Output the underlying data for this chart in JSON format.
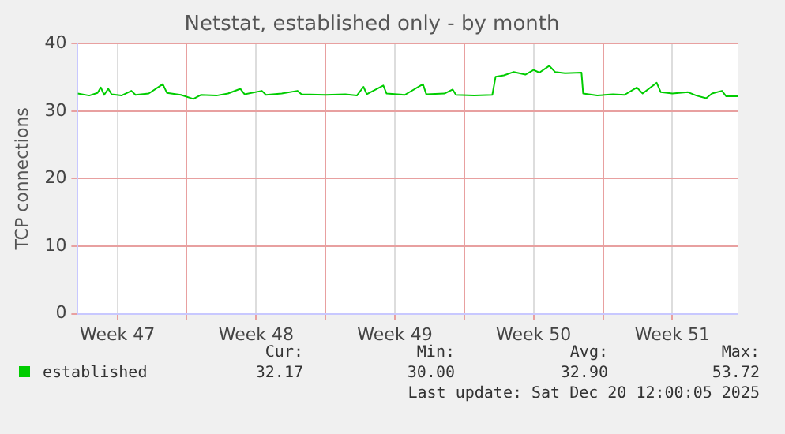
{
  "chart_data": {
    "type": "line",
    "title": "Netstat, established only - by month",
    "ylabel": "TCP connections",
    "x": [
      "2025-11-18T12:00",
      "2025-11-19T02:00",
      "2025-11-19T12:00",
      "2025-11-19T16:00",
      "2025-11-19T20:00",
      "2025-11-20T01:00",
      "2025-11-20T05:00",
      "2025-11-20T17:00",
      "2025-11-21T05:00",
      "2025-11-21T10:00",
      "2025-11-22T02:00",
      "2025-11-22T19:00",
      "2025-11-23T00:00",
      "2025-11-23T17:00",
      "2025-11-24T08:00",
      "2025-11-24T17:00",
      "2025-11-25T12:00",
      "2025-11-26T02:00",
      "2025-11-26T17:00",
      "2025-11-26T22:00",
      "2025-11-27T19:00",
      "2025-11-28T00:00",
      "2025-11-28T19:00",
      "2025-11-29T14:00",
      "2025-11-29T19:00",
      "2025-12-01T00:00",
      "2025-12-02T00:00",
      "2025-12-02T14:00",
      "2025-12-02T22:00",
      "2025-12-03T02:00",
      "2025-12-03T22:00",
      "2025-12-04T02:00",
      "2025-12-05T00:00",
      "2025-12-05T22:00",
      "2025-12-06T02:00",
      "2025-12-07T00:00",
      "2025-12-07T10:00",
      "2025-12-07T14:00",
      "2025-12-08T12:00",
      "2025-12-09T10:00",
      "2025-12-09T14:00",
      "2025-12-10T00:00",
      "2025-12-10T12:00",
      "2025-12-11T02:00",
      "2025-12-11T12:00",
      "2025-12-11T19:00",
      "2025-12-12T07:00",
      "2025-12-12T14:00",
      "2025-12-13T02:00",
      "2025-12-13T22:00",
      "2025-12-14T00:00",
      "2025-12-14T17:00",
      "2025-12-15T12:00",
      "2025-12-16T02:00",
      "2025-12-16T17:00",
      "2025-12-17T00:00",
      "2025-12-17T17:00",
      "2025-12-17T22:00",
      "2025-12-18T12:00",
      "2025-12-19T07:00",
      "2025-12-19T17:00",
      "2025-12-20T05:00",
      "2025-12-20T12:00",
      "2025-12-21T00:00",
      "2025-12-21T05:00",
      "2025-12-21T19:00"
    ],
    "series": [
      {
        "name": "established",
        "color": "#00cc00",
        "values": [
          32.6,
          32.3,
          32.7,
          33.5,
          32.4,
          33.3,
          32.5,
          32.3,
          33.0,
          32.4,
          32.6,
          34.0,
          32.7,
          32.4,
          31.8,
          32.4,
          32.3,
          32.6,
          33.3,
          32.5,
          33.0,
          32.4,
          32.6,
          33.0,
          32.5,
          32.4,
          32.5,
          32.3,
          33.6,
          32.5,
          33.8,
          32.6,
          32.4,
          34.0,
          32.5,
          32.6,
          33.2,
          32.4,
          32.3,
          32.4,
          35.1,
          35.3,
          35.8,
          35.4,
          36.1,
          35.7,
          36.7,
          35.8,
          35.6,
          35.7,
          32.6,
          32.3,
          32.5,
          32.4,
          33.5,
          32.6,
          34.2,
          32.8,
          32.6,
          32.8,
          32.3,
          31.9,
          32.6,
          33.0,
          32.2,
          32.2
        ]
      }
    ],
    "xlim": [
      "2025-11-18T12:00",
      "2025-12-21T19:00"
    ],
    "xticks": [
      {
        "value": "2025-11-20T12:00",
        "label": "Week 47"
      },
      {
        "value": "2025-11-24T00:00",
        "label": null
      },
      {
        "value": "2025-11-27T12:00",
        "label": "Week 48"
      },
      {
        "value": "2025-12-01T00:00",
        "label": null
      },
      {
        "value": "2025-12-04T12:00",
        "label": "Week 49"
      },
      {
        "value": "2025-12-08T00:00",
        "label": null
      },
      {
        "value": "2025-12-11T12:00",
        "label": "Week 50"
      },
      {
        "value": "2025-12-15T00:00",
        "label": null
      },
      {
        "value": "2025-12-18T12:00",
        "label": "Week 51"
      }
    ],
    "ylim": [
      0,
      40
    ],
    "yticks": [
      0,
      10,
      20,
      30,
      40
    ],
    "grid": true,
    "legend": "bottom left",
    "marker": "none",
    "line_style": "solid",
    "annotations": [
      "Cur:",
      "32.17",
      "Min:",
      "30.00",
      "Avg:",
      "32.90",
      "Max:",
      "53.72",
      "Last update: Sat Dec 20 12:00:05 2025"
    ]
  }
}
